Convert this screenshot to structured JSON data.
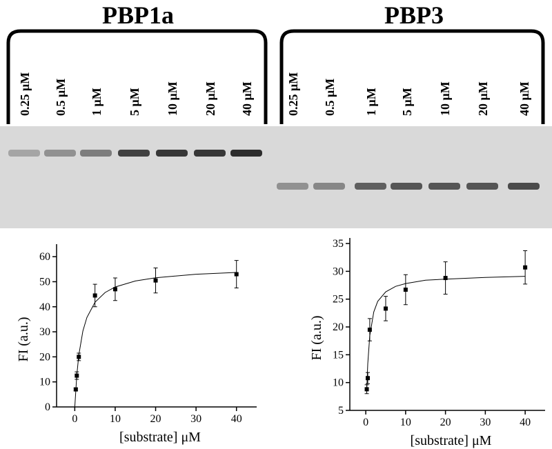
{
  "gel": {
    "groups": [
      {
        "title": "PBP1a",
        "lanes": [
          "0.25 μM",
          "0.5 μM",
          "1 μM",
          "5 μM",
          "10 μM",
          "20  μM",
          "40  μM"
        ]
      },
      {
        "title": "PBP3",
        "lanes": [
          "0.25 μM",
          "0.5 μM",
          "1 μM",
          "5 μM",
          "10 μM",
          "20  μM",
          "40  μM"
        ]
      }
    ]
  },
  "chart_data": [
    {
      "type": "scatter",
      "xlabel": "[substrate] μM",
      "ylabel": "FI (a.u.)",
      "x": [
        0.25,
        0.5,
        1,
        5,
        10,
        20,
        40
      ],
      "values": [
        7,
        12.5,
        20,
        44.5,
        47,
        50.5,
        53
      ],
      "errors": [
        0.5,
        1.5,
        1.5,
        4.5,
        4.5,
        5,
        5.5
      ],
      "fit": {
        "x": [
          0,
          0.5,
          1,
          2,
          3,
          5,
          7.5,
          10,
          15,
          20,
          30,
          40
        ],
        "values": [
          0,
          12.7,
          20.7,
          30.3,
          35.7,
          41.8,
          45.7,
          47.9,
          50.3,
          51.6,
          53.0,
          53.7
        ]
      },
      "color": "#000000",
      "xlim": [
        -4.5,
        45
      ],
      "xticks": [
        0,
        10,
        20,
        30,
        40
      ],
      "ylim": [
        0,
        65
      ],
      "yticks": [
        0,
        10,
        20,
        30,
        40,
        50,
        60
      ]
    },
    {
      "type": "scatter",
      "xlabel": "[substrate] μM",
      "ylabel": "FI (a.u.)",
      "x": [
        0.25,
        0.5,
        1,
        5,
        10,
        20,
        40
      ],
      "values": [
        8.8,
        10.8,
        19.5,
        23.3,
        26.7,
        28.8,
        30.7
      ],
      "errors": [
        0.8,
        1,
        2,
        2.2,
        2.7,
        2.9,
        3
      ],
      "fit": {
        "x": [
          0.25,
          0.5,
          1,
          2,
          3,
          5,
          7.5,
          10,
          15,
          20,
          30,
          40
        ],
        "values": [
          8.68,
          13.4,
          18.4,
          22.7,
          24.6,
          26.3,
          27.3,
          27.8,
          28.4,
          28.6,
          28.9,
          29.1
        ]
      },
      "color": "#000000",
      "xlim": [
        -4,
        45
      ],
      "xticks": [
        0,
        10,
        20,
        30,
        40
      ],
      "ylim": [
        5,
        36
      ],
      "yticks": [
        5,
        10,
        15,
        20,
        25,
        30,
        35
      ]
    }
  ]
}
